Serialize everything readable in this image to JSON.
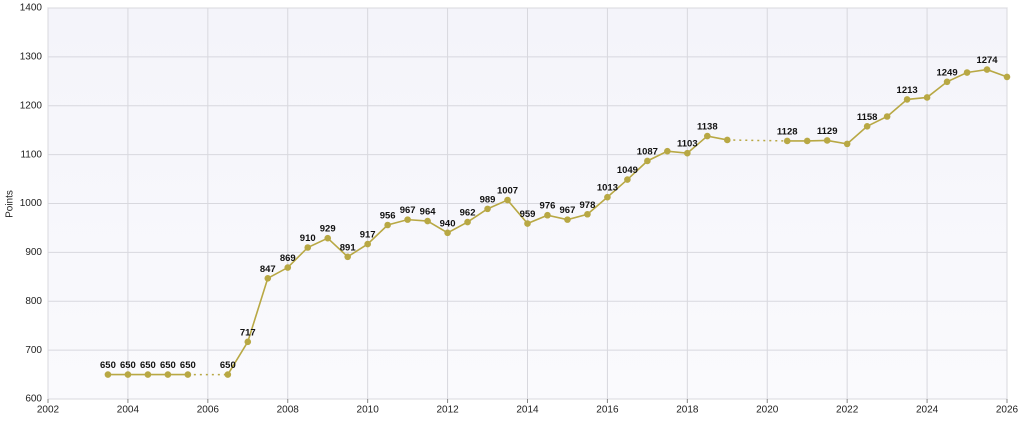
{
  "chart_data": {
    "type": "line",
    "y_label": "Points",
    "x": [
      2003.5,
      2004,
      2004.5,
      2005,
      2005.5,
      2006,
      2006.5,
      2007,
      2007.5,
      2008,
      2008.5,
      2009,
      2009.5,
      2010,
      2010.5,
      2011,
      2011.5,
      2012,
      2012.5,
      2013,
      2013.5,
      2014,
      2014.5,
      2015,
      2015.5,
      2016,
      2016.5,
      2017,
      2017.5,
      2018,
      2018.5,
      2019,
      2019.5,
      2020,
      2020.5,
      2021,
      2021.5,
      2022,
      2022.5,
      2023,
      2023.5,
      2024,
      2024.5,
      2025,
      2025.5,
      2026
    ],
    "values": [
      650,
      650,
      650,
      650,
      650,
      null,
      650,
      717,
      847,
      869,
      910,
      929,
      891,
      917,
      956,
      967,
      964,
      940,
      962,
      989,
      1007,
      959,
      976,
      967,
      978,
      1013,
      1049,
      1087,
      1107,
      1103,
      1138,
      1130,
      null,
      null,
      1128,
      1128,
      1129,
      1122,
      1158,
      1178,
      1213,
      1217,
      1249,
      1268,
      1274,
      1259
    ],
    "value_labels": [
      "650",
      "650",
      "650",
      "650",
      "650",
      null,
      "650",
      "717",
      "847",
      "869",
      "910",
      "929",
      "891",
      "917",
      "956",
      "967",
      "964",
      "940",
      "962",
      "989",
      "1007",
      "959",
      "976",
      "967",
      "978",
      "1013",
      "1049",
      "1087",
      null,
      "1103",
      "1138",
      null,
      null,
      null,
      "1128",
      null,
      "1129",
      null,
      "1158",
      null,
      "1213",
      null,
      "1249",
      null,
      "1274",
      null
    ],
    "color": "#b8a844",
    "gap_line": "dotted",
    "xlim": [
      2002,
      2026
    ],
    "xticks": [
      2002,
      2004,
      2006,
      2008,
      2010,
      2012,
      2014,
      2016,
      2018,
      2020,
      2022,
      2024,
      2026
    ],
    "ylim": [
      600,
      1400
    ],
    "yticks": [
      600,
      700,
      800,
      900,
      1000,
      1100,
      1200,
      1300,
      1400
    ],
    "grid": true
  }
}
